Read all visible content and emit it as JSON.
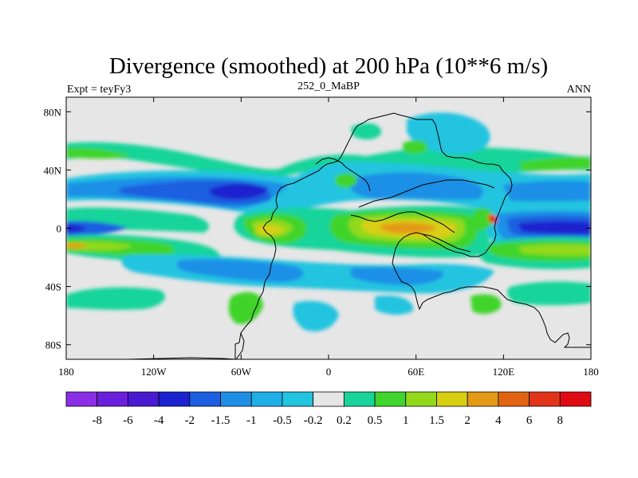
{
  "chart_data": {
    "type": "heatmap",
    "title": "Divergence (smoothed) at 200 hPa (10**6 m/s)",
    "left_label": "Expt = teyFy3",
    "center_label": "252_0_MaBP",
    "right_label": "ANN",
    "x_range": [
      -180,
      180
    ],
    "y_range": [
      -90,
      90
    ],
    "x_ticks": [
      {
        "value": -180,
        "label": "180"
      },
      {
        "value": -120,
        "label": "120W"
      },
      {
        "value": -60,
        "label": "60W"
      },
      {
        "value": 0,
        "label": "0"
      },
      {
        "value": 60,
        "label": "60E"
      },
      {
        "value": 120,
        "label": "120E"
      },
      {
        "value": 180,
        "label": "180"
      }
    ],
    "y_ticks": [
      {
        "value": 80,
        "label": "80N"
      },
      {
        "value": 40,
        "label": "40N"
      },
      {
        "value": 0,
        "label": "0"
      },
      {
        "value": -40,
        "label": "40S"
      },
      {
        "value": -80,
        "label": "80S"
      }
    ],
    "colorbar": {
      "levels": [
        "-8",
        "-6",
        "-4",
        "-2",
        "-1.5",
        "-1",
        "-0.5",
        "-0.2",
        "0.2",
        "0.5",
        "1",
        "1.5",
        "2",
        "4",
        "6",
        "8"
      ],
      "colors": [
        "#8b2fe6",
        "#6a1fdc",
        "#4a1ad1",
        "#1a23cf",
        "#1c5fe0",
        "#1f8fe6",
        "#20aee6",
        "#22c4e0",
        "#e6e6e6",
        "#19d49a",
        "#41d42c",
        "#93d91b",
        "#d8cf12",
        "#e49a15",
        "#e26413",
        "#e2341a",
        "#e00a14"
      ]
    },
    "fill_colors": {
      "background": "#e6e6e6",
      "neg_weak": "#22c4e0",
      "neg_mid": "#1f8fe6",
      "neg_strong": "#1c5fe0",
      "neg_core": "#1a23cf",
      "pos_weak": "#19d49a",
      "pos_mid": "#41d42c",
      "pos_strong": "#93d91b",
      "pos_core": "#d8cf12",
      "pos_peak": "#e49a15"
    },
    "field_regions": [
      {
        "sign": "neg",
        "lon": [
          -180,
          -60
        ],
        "lat": [
          20,
          45
        ],
        "level": "neg_mid"
      },
      {
        "sign": "neg",
        "lon": [
          -120,
          -40
        ],
        "lat": [
          15,
          40
        ],
        "level": "neg_strong"
      },
      {
        "sign": "neg",
        "lon": [
          -85,
          -60
        ],
        "lat": [
          22,
          32
        ],
        "level": "neg_core"
      },
      {
        "sign": "neg",
        "lon": [
          -180,
          -120
        ],
        "lat": [
          -10,
          5
        ],
        "level": "neg_strong"
      },
      {
        "sign": "neg",
        "lon": [
          120,
          180
        ],
        "lat": [
          -8,
          8
        ],
        "level": "neg_core"
      },
      {
        "sign": "pos",
        "lon": [
          -70,
          -20
        ],
        "lat": [
          -20,
          10
        ],
        "level": "pos_strong"
      },
      {
        "sign": "pos",
        "lon": [
          30,
          100
        ],
        "lat": [
          -15,
          15
        ],
        "level": "pos_peak"
      },
      {
        "sign": "pos",
        "lon": [
          -180,
          -120
        ],
        "lat": [
          -25,
          -10
        ],
        "level": "pos_strong"
      },
      {
        "sign": "pos",
        "lon": [
          120,
          180
        ],
        "lat": [
          -25,
          5
        ],
        "level": "pos_mid"
      }
    ]
  }
}
